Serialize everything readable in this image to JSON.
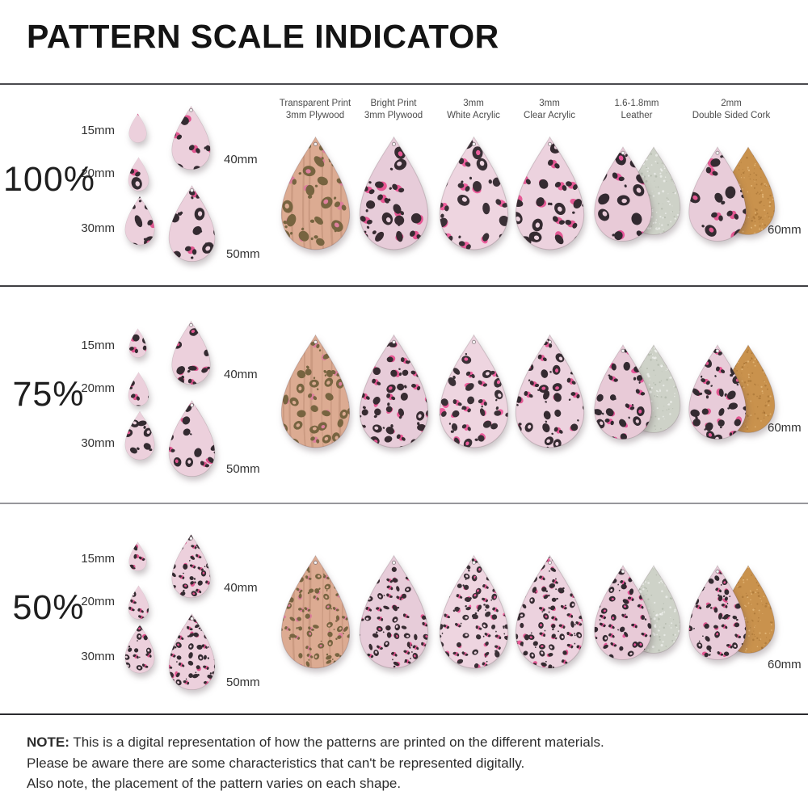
{
  "title": "PATTERN SCALE INDICATOR",
  "materials": [
    {
      "name": "transparent-plywood",
      "label": [
        "Transparent Print",
        "3mm Plywood"
      ],
      "base": "#dcab92",
      "spot": "#776440",
      "accent": "#dd7f9c",
      "grain": true
    },
    {
      "name": "bright-plywood",
      "label": [
        "Bright Print",
        "3mm Plywood"
      ],
      "base": "#e7ccd9",
      "spot": "#372b31",
      "accent": "#e75693"
    },
    {
      "name": "white-acrylic",
      "label": [
        "3mm",
        "White Acrylic"
      ],
      "base": "#eed5e0",
      "spot": "#3a3036",
      "accent": "#ee5f9e"
    },
    {
      "name": "clear-acrylic",
      "label": [
        "3mm",
        "Clear Acrylic"
      ],
      "base": "#ecd2de",
      "spot": "#352b31",
      "accent": "#e55995"
    },
    {
      "name": "leather",
      "label": [
        "1.6-1.8mm",
        "Leather"
      ],
      "base": "#e8cad7",
      "spot": "#322930",
      "accent": "#e6559a",
      "back": "#ced2c8",
      "back_texture": "suede"
    },
    {
      "name": "cork",
      "label": [
        "2mm",
        "Double Sided Cork"
      ],
      "base": "#e8ccd9",
      "spot": "#342b31",
      "accent": "#e35892",
      "back": "#c9924d",
      "back_texture": "cork"
    }
  ],
  "swatch": {
    "base": "#ecd0dc",
    "spot": "#342b31",
    "accent": "#e0558f"
  },
  "rows": [
    {
      "scale_label": "100%",
      "pattern_scale": 1.0,
      "size_labels": {
        "s15": "15mm",
        "s20": "20mm",
        "s30": "30mm",
        "s40": "40mm",
        "s50": "50mm",
        "s60": "60mm"
      }
    },
    {
      "scale_label": "75%",
      "pattern_scale": 0.75,
      "size_labels": {
        "s15": "15mm",
        "s20": "20mm",
        "s30": "30mm",
        "s40": "40mm",
        "s50": "50mm",
        "s60": "60mm"
      }
    },
    {
      "scale_label": "50%",
      "pattern_scale": 0.5,
      "size_labels": {
        "s15": "15mm",
        "s20": "20mm",
        "s30": "30mm",
        "s40": "40mm",
        "s50": "50mm",
        "s60": "60mm"
      }
    }
  ],
  "note": {
    "label": "NOTE:",
    "line1": "This is a digital representation of how the patterns are printed on the different materials.",
    "line2": "Please be aware there are some characteristics that can't be represented digitally.",
    "line3": "Also note, the placement of the pattern varies on each shape."
  }
}
